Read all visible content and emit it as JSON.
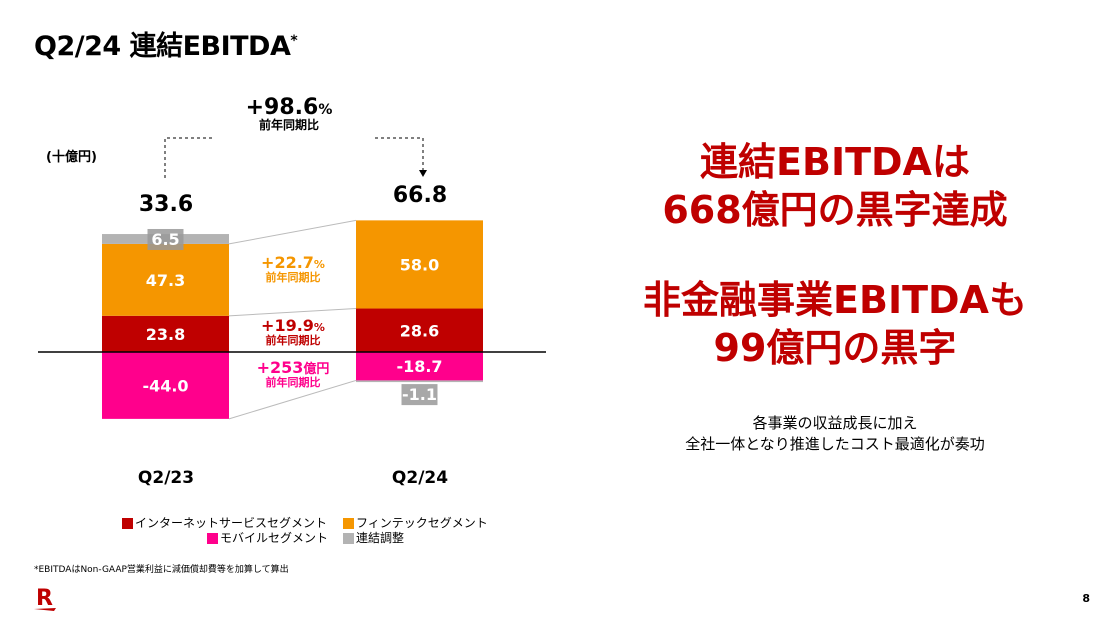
{
  "title": "Q2/24 連結EBITDA",
  "title_mark": "*",
  "chart_data": {
    "type": "bar",
    "stacked": true,
    "unit_label": "(十億円)",
    "categories": [
      "Q2/23",
      "Q2/24"
    ],
    "totals": [
      "33.6",
      "66.8"
    ],
    "series": [
      {
        "name": "インターネットサービスセグメント",
        "color": "#bf0000",
        "values": [
          23.8,
          28.6
        ]
      },
      {
        "name": "フィンテックセグメント",
        "color": "#f59600",
        "values": [
          47.3,
          58.0
        ]
      },
      {
        "name": "モバイルセグメント",
        "color": "#ff008c",
        "values": [
          -44.0,
          -18.7
        ]
      },
      {
        "name": "連結調整",
        "color": "#b3b3b3",
        "values": [
          6.5,
          -1.1
        ]
      }
    ],
    "total_growth": {
      "value": "+98.6",
      "suffix": "%",
      "label": "前年同期比"
    },
    "segment_growth": [
      {
        "series": "フィンテックセグメント",
        "value": "+22.7",
        "suffix": "%",
        "label": "前年同期比",
        "color": "#f59600"
      },
      {
        "series": "インターネットサービスセグメント",
        "value": "+19.9",
        "suffix": "%",
        "label": "前年同期比",
        "color": "#bf0000"
      },
      {
        "series": "モバイルセグメント",
        "value": "+253",
        "suffix": "億円",
        "label": "前年同期比",
        "color": "#ff008c"
      }
    ]
  },
  "headline": {
    "line1": "連結EBITDAは",
    "line2": "668億円の黒字達成",
    "line3": "非金融事業EBITDAも",
    "line4": "99億円の黒字"
  },
  "subtext": {
    "line1": "各事業の収益成長に加え",
    "line2": "全社一体となり推進したコスト最適化が奏功"
  },
  "footnote": "*EBITDAはNon-GAAP営業利益に減価償却費等を加算して算出",
  "logo": "R",
  "page_number": "8"
}
